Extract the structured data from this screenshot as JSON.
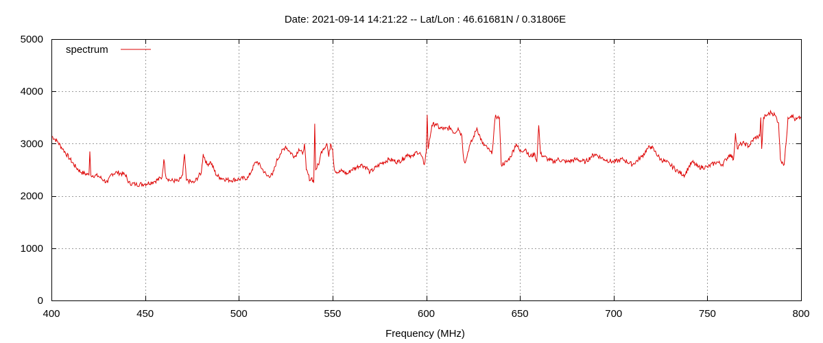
{
  "chart_data": {
    "type": "line",
    "title": "Date: 2021-09-14 14:21:22  --  Lat/Lon : 46.61681N / 0.31806E",
    "xlabel": "Frequency (MHz)",
    "ylabel": "",
    "xlim": [
      400,
      800
    ],
    "ylim": [
      0,
      5000
    ],
    "xticks": [
      400,
      450,
      500,
      550,
      600,
      650,
      700,
      750,
      800
    ],
    "yticks": [
      0,
      1000,
      2000,
      3000,
      4000,
      5000
    ],
    "grid": true,
    "legend_position": "top-left",
    "series": [
      {
        "name": "spectrum",
        "color": "#dd0000",
        "x": [
          400,
          403,
          406,
          410,
          413,
          416,
          420,
          420.5,
          421,
          425,
          428,
          430,
          432,
          435,
          440,
          440.5,
          441,
          445,
          450,
          455,
          459,
          460,
          461,
          463,
          468,
          470,
          471,
          472,
          476,
          480,
          481,
          483,
          485,
          488,
          490,
          495,
          500,
          505,
          507,
          509,
          510,
          515,
          518,
          520,
          522,
          525,
          527,
          530,
          532,
          534,
          535,
          536,
          538,
          539,
          540,
          540.5,
          541,
          543,
          544,
          545,
          547,
          548,
          549,
          550,
          551,
          553,
          555,
          558,
          560,
          563,
          565,
          568,
          570,
          575,
          580,
          585,
          588,
          590,
          593,
          595,
          597,
          599,
          600,
          600.5,
          601,
          603,
          605,
          607,
          610,
          613,
          615,
          617,
          619,
          620,
          621,
          622,
          623,
          625,
          627,
          630,
          633,
          634,
          635,
          637,
          638,
          639,
          640,
          643,
          645,
          648,
          650,
          653,
          655,
          658,
          659,
          660,
          661,
          663,
          665,
          668,
          670,
          675,
          680,
          685,
          688,
          690,
          695,
          700,
          705,
          710,
          715,
          718,
          720,
          722,
          725,
          728,
          730,
          735,
          738,
          740,
          742,
          745,
          750,
          755,
          758,
          760,
          762,
          764,
          765,
          766,
          768,
          770,
          772,
          775,
          778,
          778.5,
          779,
          780,
          782,
          784,
          786,
          788,
          789,
          790,
          791,
          792,
          793,
          795,
          797,
          800
        ],
        "y": [
          3150,
          3050,
          2900,
          2700,
          2550,
          2450,
          2400,
          2850,
          2400,
          2380,
          2300,
          2250,
          2420,
          2450,
          2400,
          2300,
          2250,
          2220,
          2230,
          2280,
          2350,
          2700,
          2380,
          2300,
          2280,
          2400,
          2800,
          2300,
          2250,
          2450,
          2800,
          2600,
          2650,
          2400,
          2350,
          2300,
          2320,
          2350,
          2500,
          2650,
          2650,
          2380,
          2400,
          2650,
          2800,
          2950,
          2850,
          2750,
          2900,
          2800,
          3000,
          2500,
          2300,
          2350,
          2250,
          3380,
          2500,
          2650,
          2850,
          2900,
          3000,
          2750,
          3000,
          2900,
          2500,
          2450,
          2480,
          2420,
          2500,
          2550,
          2600,
          2550,
          2450,
          2600,
          2700,
          2650,
          2720,
          2800,
          2750,
          2850,
          2800,
          2600,
          2850,
          3550,
          2900,
          3350,
          3380,
          3300,
          3280,
          3300,
          3200,
          3300,
          3150,
          2700,
          2650,
          2800,
          2950,
          3100,
          3300,
          3000,
          2900,
          2850,
          2800,
          3550,
          3500,
          3500,
          2600,
          2650,
          2750,
          3000,
          2850,
          2900,
          2750,
          2800,
          2650,
          3350,
          2800,
          2750,
          2700,
          2650,
          2700,
          2650,
          2700,
          2650,
          2750,
          2800,
          2700,
          2650,
          2700,
          2600,
          2750,
          2900,
          2950,
          2850,
          2700,
          2650,
          2600,
          2450,
          2400,
          2550,
          2650,
          2550,
          2550,
          2650,
          2600,
          2700,
          2800,
          2700,
          3200,
          2900,
          3000,
          3000,
          2950,
          3100,
          3150,
          3500,
          2900,
          3500,
          3550,
          3600,
          3550,
          3400,
          2700,
          2650,
          2600,
          3000,
          3500,
          3550,
          3450,
          3500
        ]
      }
    ]
  }
}
